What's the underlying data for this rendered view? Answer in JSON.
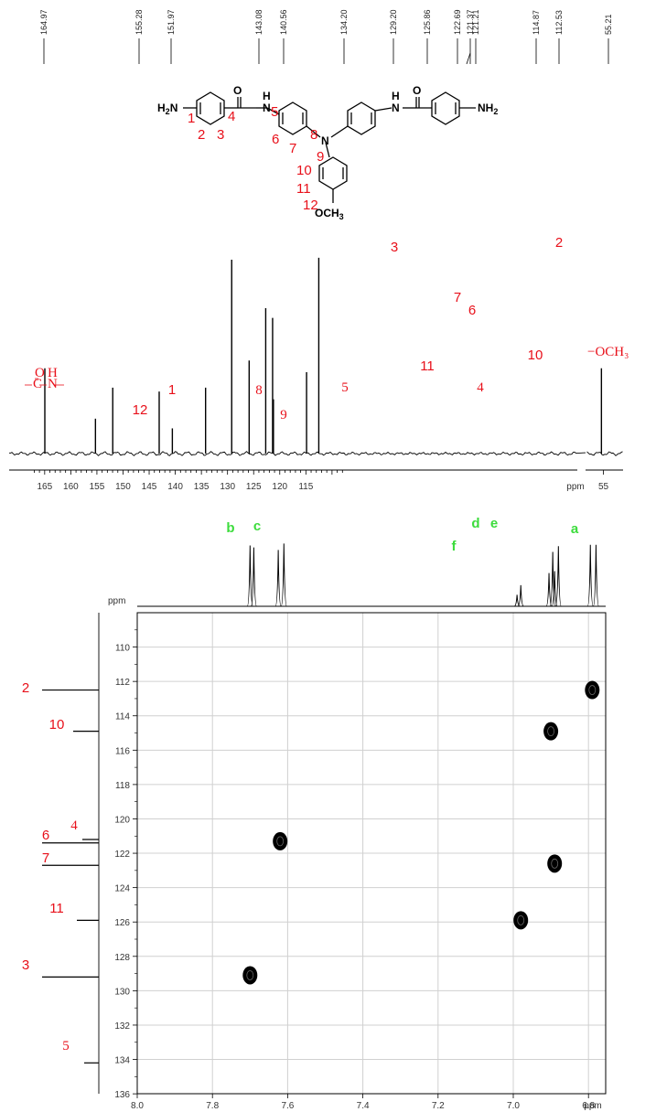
{
  "chart_data": [
    {
      "type": "line",
      "subtype": "13C-NMR spectrum",
      "xlabel": "ppm",
      "x_reversed": true,
      "xlim": [
        168,
        107
      ],
      "xlim_inset": [
        57,
        53
      ],
      "ticks": [
        "165",
        "160",
        "155",
        "150",
        "145",
        "140",
        "135",
        "130",
        "125",
        "120",
        "115",
        "ppm",
        "55"
      ],
      "shift_labels": [
        "164.97",
        "155.28",
        "151.97",
        "143.08",
        "140.56",
        "134.20",
        "129.20",
        "125.86",
        "122.69",
        "121.37",
        "121.21",
        "114.87",
        "112.53",
        "55.21"
      ],
      "peaks": [
        {
          "ppm": 164.97,
          "intensity": 0.44,
          "label": "C=O amide"
        },
        {
          "ppm": 155.28,
          "intensity": 0.18,
          "label": "12"
        },
        {
          "ppm": 151.97,
          "intensity": 0.34,
          "label": "1"
        },
        {
          "ppm": 143.08,
          "intensity": 0.32,
          "label": "8"
        },
        {
          "ppm": 140.56,
          "intensity": 0.13,
          "label": "9"
        },
        {
          "ppm": 134.2,
          "intensity": 0.34,
          "label": "5"
        },
        {
          "ppm": 129.2,
          "intensity": 1.0,
          "label": "3"
        },
        {
          "ppm": 125.86,
          "intensity": 0.48,
          "label": "11"
        },
        {
          "ppm": 122.69,
          "intensity": 0.75,
          "label": "7"
        },
        {
          "ppm": 121.37,
          "intensity": 0.7,
          "label": "6"
        },
        {
          "ppm": 121.21,
          "intensity": 0.28,
          "label": "4"
        },
        {
          "ppm": 114.87,
          "intensity": 0.42,
          "label": "10"
        },
        {
          "ppm": 112.53,
          "intensity": 1.01,
          "label": "2"
        },
        {
          "ppm": 55.21,
          "intensity": 0.44,
          "label": "-OCH3"
        }
      ]
    },
    {
      "type": "line",
      "subtype": "1H projection",
      "x_reversed": true,
      "xlim": [
        8.0,
        6.7
      ],
      "peaks": [
        {
          "label": "b",
          "lines": [
            {
              "ppm": 7.7,
              "intensity": 0.95
            },
            {
              "ppm": 7.69,
              "intensity": 0.92
            }
          ]
        },
        {
          "label": "c",
          "lines": [
            {
              "ppm": 7.625,
              "intensity": 0.88
            },
            {
              "ppm": 7.61,
              "intensity": 0.98
            }
          ]
        },
        {
          "label": "f",
          "lines": [
            {
              "ppm": 6.99,
              "intensity": 0.18
            },
            {
              "ppm": 6.98,
              "intensity": 0.33
            }
          ]
        },
        {
          "label": "d",
          "lines": [
            {
              "ppm": 6.905,
              "intensity": 0.52
            },
            {
              "ppm": 6.895,
              "intensity": 0.85
            }
          ]
        },
        {
          "label": "e",
          "lines": [
            {
              "ppm": 6.89,
              "intensity": 0.55
            },
            {
              "ppm": 6.88,
              "intensity": 0.94
            }
          ]
        },
        {
          "label": "a",
          "lines": [
            {
              "ppm": 6.795,
              "intensity": 0.96
            },
            {
              "ppm": 6.78,
              "intensity": 0.96
            }
          ]
        }
      ]
    },
    {
      "type": "scatter",
      "subtype": "HSQC 2D contour",
      "xlabel": "ppm",
      "ylabel": "ppm",
      "xlim": [
        8.0,
        6.75
      ],
      "ylim": [
        108,
        136
      ],
      "x_ticks": [
        "8.0",
        "7.8",
        "7.6",
        "7.4",
        "7.2",
        "7.0",
        "6.8"
      ],
      "x_end_label": "ppm",
      "y_ticks": [
        "110",
        "112",
        "114",
        "116",
        "118",
        "120",
        "122",
        "124",
        "126",
        "128",
        "130",
        "132",
        "134",
        "136"
      ],
      "y_top_label": "ppm",
      "grid": true,
      "points": [
        {
          "x": 6.79,
          "y": 112.5
        },
        {
          "x": 6.9,
          "y": 114.9
        },
        {
          "x": 7.62,
          "y": 121.3
        },
        {
          "x": 6.89,
          "y": 122.6
        },
        {
          "x": 6.98,
          "y": 125.9
        },
        {
          "x": 7.7,
          "y": 129.1
        }
      ],
      "left_axis_labels": [
        {
          "label": "2",
          "ppm": 112.5
        },
        {
          "label": "10",
          "ppm": 114.9
        },
        {
          "label": "4",
          "ppm": 121.2
        },
        {
          "label": "6",
          "ppm": 121.4
        },
        {
          "label": "7",
          "ppm": 122.7
        },
        {
          "label": "11",
          "ppm": 125.9
        },
        {
          "label": "3",
          "ppm": 129.2
        },
        {
          "label": "5",
          "ppm": 134.2
        }
      ]
    }
  ],
  "structure": {
    "atoms": [
      "H2N",
      "NH2",
      "N",
      "O",
      "O",
      "H",
      "N",
      "H",
      "N",
      "OCH3"
    ],
    "position_labels": [
      "1",
      "2",
      "3",
      "4",
      "5",
      "6",
      "7",
      "8",
      "9",
      "10",
      "11",
      "12"
    ]
  },
  "colors": {
    "label_red": "#e8101a",
    "label_green": "#3cdc3c",
    "trace": "#000000",
    "grid": "#d0d0d0"
  }
}
